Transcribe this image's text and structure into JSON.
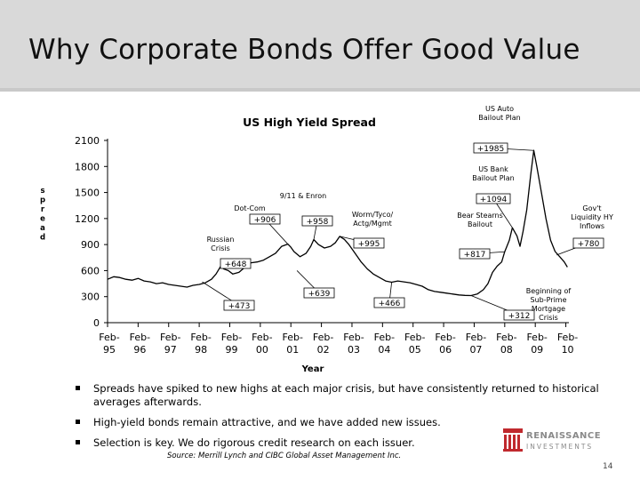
{
  "slide": {
    "title": "Why Corporate Bonds Offer Good Value",
    "page_number": "14",
    "source": "Source: Merrill Lynch and CIBC Global Asset Management Inc."
  },
  "bullets": [
    "Spreads have spiked to new highs at each major crisis, but have consistently returned to historical averages afterwards.",
    "High-yield bonds remain attractive, and we have added new issues.",
    "Selection is key.  We do rigorous credit research on each issuer."
  ],
  "logo": {
    "name": "RENAISSANCE",
    "sub": "INVESTMENTS",
    "color": "#c0292e"
  },
  "chart_data": {
    "type": "line",
    "title": "US High Yield Spread",
    "xlabel": "Year",
    "ylabel": "Spread",
    "ylim": [
      0,
      2100
    ],
    "yticks": [
      0,
      300,
      600,
      900,
      1200,
      1500,
      1800,
      2100
    ],
    "xticks": [
      "Feb-95",
      "Feb-96",
      "Feb-97",
      "Feb-98",
      "Feb-99",
      "Feb-00",
      "Feb-01",
      "Feb-02",
      "Feb-03",
      "Feb-04",
      "Feb-05",
      "Feb-06",
      "Feb-07",
      "Feb-08",
      "Feb-09",
      "Feb-10"
    ],
    "xlim": [
      1995.0,
      2010.1
    ],
    "series": [
      {
        "name": "US High Yield Spread",
        "color": "#000000",
        "x": [
          1995.0,
          1995.2,
          1995.4,
          1995.6,
          1995.8,
          1996.0,
          1996.2,
          1996.4,
          1996.6,
          1996.8,
          1997.0,
          1997.2,
          1997.4,
          1997.6,
          1997.8,
          1998.0,
          1998.2,
          1998.4,
          1998.55,
          1998.7,
          1998.8,
          1998.95,
          1999.1,
          1999.3,
          1999.5,
          1999.7,
          1999.9,
          2000.1,
          2000.3,
          2000.5,
          2000.7,
          2000.9,
          2001.0,
          2001.1,
          2001.3,
          2001.5,
          2001.65,
          2001.75,
          2001.9,
          2002.1,
          2002.3,
          2002.45,
          2002.6,
          2002.75,
          2002.9,
          2003.1,
          2003.3,
          2003.5,
          2003.7,
          2003.9,
          2004.1,
          2004.3,
          2004.5,
          2004.7,
          2004.9,
          2005.1,
          2005.3,
          2005.5,
          2005.7,
          2005.9,
          2006.1,
          2006.3,
          2006.5,
          2006.7,
          2006.9,
          2007.1,
          2007.3,
          2007.45,
          2007.6,
          2007.75,
          2007.9,
          2008.0,
          2008.15,
          2008.25,
          2008.4,
          2008.5,
          2008.6,
          2008.72,
          2008.85,
          2008.95,
          2009.05,
          2009.2,
          2009.35,
          2009.5,
          2009.65,
          2009.8,
          2009.95,
          2010.05
        ],
        "values": [
          500,
          530,
          520,
          500,
          490,
          510,
          480,
          470,
          450,
          460,
          440,
          430,
          420,
          410,
          430,
          440,
          460,
          500,
          560,
          648,
          620,
          600,
          560,
          580,
          640,
          690,
          700,
          720,
          760,
          800,
          880,
          906,
          870,
          820,
          760,
          800,
          880,
          958,
          900,
          860,
          880,
          920,
          995,
          960,
          900,
          800,
          700,
          620,
          560,
          520,
          480,
          466,
          480,
          470,
          460,
          440,
          420,
          380,
          360,
          350,
          340,
          330,
          320,
          315,
          312,
          330,
          380,
          450,
          580,
          650,
          700,
          817,
          950,
          1094,
          1000,
          880,
          1050,
          1300,
          1700,
          1985,
          1800,
          1500,
          1200,
          950,
          820,
          760,
          700,
          640
        ]
      }
    ],
    "annotations": [
      {
        "label": "Russian Crisis",
        "value": "+648"
      },
      {
        "label": "Dot-Com",
        "value": "+906"
      },
      {
        "label": "9/11 & Enron",
        "value": "+958"
      },
      {
        "label": "Worm/Tyco/ Actg/Mgmt",
        "value": "+995"
      },
      {
        "label": "",
        "value": "+473"
      },
      {
        "label": "",
        "value": "+639"
      },
      {
        "label": "",
        "value": "+466"
      },
      {
        "label": "Bear Stearns Bailout",
        "value": "+817"
      },
      {
        "label": "US Bank Bailout Plan",
        "value": "+1094"
      },
      {
        "label": "US Auto Bailout Plan",
        "value": "+1985"
      },
      {
        "label": "Gov't Liquidity HY Inflows",
        "value": "+780"
      },
      {
        "label": "Beginning of Sub-Prime Mortgage Crisis",
        "value": "+312"
      }
    ]
  }
}
